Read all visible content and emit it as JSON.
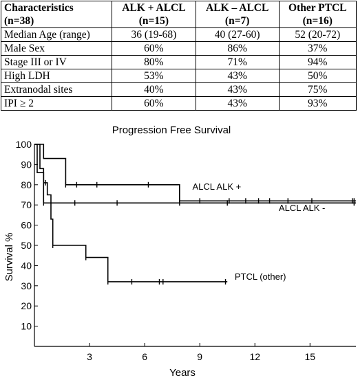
{
  "table": {
    "headers": [
      {
        "label": "Characteristics",
        "sub": "(n=38)"
      },
      {
        "label": "ALK + ALCL",
        "sub": "(n=15)"
      },
      {
        "label": "ALK – ALCL",
        "sub": "(n=7)"
      },
      {
        "label": "Other PTCL",
        "sub": "(n=16)"
      }
    ],
    "rows": [
      [
        "Median Age (range)",
        "36 (19-68)",
        "40 (27-60)",
        "52 (20-72)"
      ],
      [
        "Male Sex",
        "60%",
        "86%",
        "37%"
      ],
      [
        "Stage III or IV",
        "80%",
        "71%",
        "94%"
      ],
      [
        "High LDH",
        "53%",
        "43%",
        "50%"
      ],
      [
        "Extranodal sites",
        "40%",
        "43%",
        "75%"
      ],
      [
        "IPI ≥ 2",
        "60%",
        "43%",
        "93%"
      ]
    ]
  },
  "chart_data": {
    "type": "line",
    "title": "Progression Free Survival",
    "xlabel": "Years",
    "ylabel": "Survival %",
    "xlim": [
      0,
      17.5
    ],
    "ylim": [
      0,
      100
    ],
    "xticks": [
      3,
      6,
      9,
      12,
      15
    ],
    "yticks": [
      10,
      20,
      30,
      40,
      50,
      60,
      70,
      80,
      90,
      100
    ],
    "grid": false,
    "series": [
      {
        "name": "ALCL ALK +",
        "steps": [
          [
            0,
            100
          ],
          [
            0.5,
            100
          ],
          [
            0.5,
            93
          ],
          [
            1.7,
            93
          ],
          [
            1.7,
            87
          ],
          [
            1.7,
            80
          ],
          [
            7.9,
            80
          ],
          [
            7.9,
            72
          ],
          [
            17.5,
            72
          ]
        ],
        "censors": [
          [
            1.7,
            80
          ],
          [
            2.3,
            80
          ],
          [
            3.4,
            80
          ],
          [
            6.2,
            80
          ],
          [
            7.9,
            72
          ],
          [
            9,
            72
          ],
          [
            10.6,
            72
          ],
          [
            11.5,
            72
          ],
          [
            12.2,
            72
          ],
          [
            12.8,
            72
          ],
          [
            13.8,
            72
          ],
          [
            15.1,
            72
          ],
          [
            17.3,
            72
          ],
          [
            17.4,
            72
          ]
        ]
      },
      {
        "name": "ALCL ALK -",
        "steps": [
          [
            0,
            100
          ],
          [
            0.15,
            100
          ],
          [
            0.15,
            86
          ],
          [
            0.5,
            86
          ],
          [
            0.5,
            71
          ],
          [
            17.5,
            71
          ]
        ],
        "censors": [
          [
            0.5,
            71
          ],
          [
            2.2,
            71
          ],
          [
            4.5,
            71
          ],
          [
            7.9,
            71
          ],
          [
            10.5,
            71
          ],
          [
            17.4,
            71
          ]
        ]
      },
      {
        "name": "PTCL (other)",
        "steps": [
          [
            0,
            100
          ],
          [
            0.3,
            100
          ],
          [
            0.3,
            88
          ],
          [
            0.5,
            88
          ],
          [
            0.5,
            81
          ],
          [
            0.7,
            81
          ],
          [
            0.7,
            75
          ],
          [
            0.9,
            75
          ],
          [
            0.9,
            63
          ],
          [
            1,
            63
          ],
          [
            1,
            56
          ],
          [
            1,
            50
          ],
          [
            2.8,
            50
          ],
          [
            2.8,
            44
          ],
          [
            4,
            44
          ],
          [
            4,
            37
          ],
          [
            4,
            32
          ],
          [
            10.5,
            32
          ]
        ],
        "censors": [
          [
            0.6,
            81
          ],
          [
            1,
            56
          ],
          [
            1,
            50
          ],
          [
            2.8,
            44
          ],
          [
            4,
            32
          ],
          [
            5.3,
            32
          ],
          [
            6.8,
            32
          ],
          [
            7,
            32
          ],
          [
            10.4,
            32
          ]
        ]
      }
    ],
    "annotations": [
      {
        "text": "ALCL ALK +",
        "x": 8.6,
        "y": 77.5
      },
      {
        "text": "ALCL ALK -",
        "x": 13.3,
        "y": 67
      },
      {
        "text": "PTCL (other)",
        "x": 10.9,
        "y": 33
      }
    ]
  }
}
